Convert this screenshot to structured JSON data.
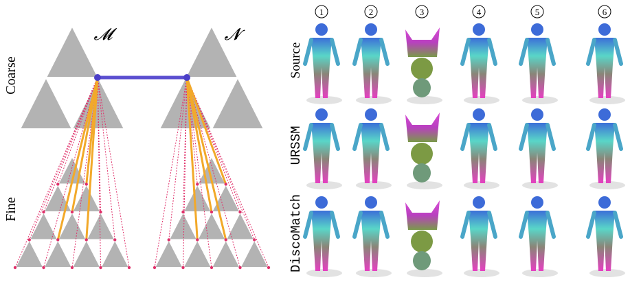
{
  "labels": {
    "m": "𝓜",
    "n": "𝓝",
    "coarse": "Coarse",
    "fine": "Fine"
  },
  "rows": [
    "Source",
    "URSSM",
    "DiscoMatch"
  ],
  "columns": [
    "1",
    "2",
    "3",
    "4",
    "5",
    "6"
  ]
}
